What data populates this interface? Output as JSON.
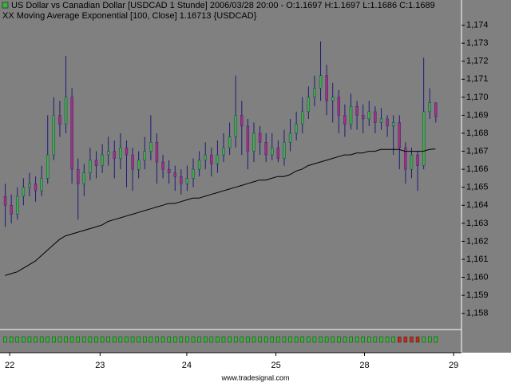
{
  "chart_data": {
    "type": "candlestick",
    "title": "US Dollar vs Canadian Dollar [USDCAD  1 Stunde] 2006/03/28 20:00 - O:1.1697 H:1.1697 L:1.1686 C:1.1689",
    "subtitle": "XX Moving Average Exponential [100, Close] 1.16713 {USDCAD}",
    "footer": "www.tradesignal.com",
    "colors": {
      "up": "#3fb03f",
      "down": "#a3307a",
      "wick": "#1c1c78",
      "ema": "#000000",
      "trend_up": "#3fb03f",
      "trend_down": "#d02020"
    },
    "open": [
      1.1645,
      1.164,
      1.1635,
      1.1645,
      1.165,
      1.1652,
      1.1648,
      1.1655,
      1.1668,
      1.169,
      1.1685,
      1.17,
      1.166,
      1.1652,
      1.1658,
      1.1665,
      1.1662,
      1.1668,
      1.167,
      1.1666,
      1.1672,
      1.1668,
      1.166,
      1.1665,
      1.167,
      1.1675,
      1.1664,
      1.166,
      1.1658,
      1.1656,
      1.1652,
      1.1655,
      1.166,
      1.1665,
      1.1668,
      1.1663,
      1.1668,
      1.1672,
      1.1678,
      1.169,
      1.1684,
      1.167,
      1.168,
      1.1675,
      1.1668,
      1.1672,
      1.1666,
      1.1675,
      1.168,
      1.1685,
      1.1692,
      1.17,
      1.1705,
      1.1712,
      1.1698,
      1.17,
      1.169,
      1.1685,
      1.1695,
      1.169,
      1.1688,
      1.1692,
      1.1686,
      1.1688,
      1.1684,
      1.1686,
      1.1672,
      1.166,
      1.1668,
      1.1662,
      1.1692,
      1.1697
    ],
    "high": [
      1.1652,
      1.1646,
      1.165,
      1.1655,
      1.1658,
      1.1656,
      1.1662,
      1.169,
      1.17,
      1.1698,
      1.1723,
      1.1705,
      1.1666,
      1.1663,
      1.1672,
      1.167,
      1.1674,
      1.1678,
      1.1676,
      1.168,
      1.1676,
      1.1672,
      1.167,
      1.1678,
      1.169,
      1.168,
      1.1668,
      1.1665,
      1.1662,
      1.166,
      1.1662,
      1.1666,
      1.167,
      1.1675,
      1.1672,
      1.1676,
      1.168,
      1.1686,
      1.1712,
      1.1698,
      1.1688,
      1.1686,
      1.1684,
      1.168,
      1.168,
      1.1676,
      1.1682,
      1.1688,
      1.1692,
      1.17,
      1.1706,
      1.1712,
      1.1731,
      1.1718,
      1.1708,
      1.1704,
      1.1696,
      1.1702,
      1.1698,
      1.1696,
      1.1698,
      1.1695,
      1.1694,
      1.169,
      1.169,
      1.169,
      1.1675,
      1.1672,
      1.167,
      1.1722,
      1.1705,
      1.1697
    ],
    "low": [
      1.1628,
      1.163,
      1.1632,
      1.164,
      1.1645,
      1.1642,
      1.1645,
      1.1652,
      1.1665,
      1.1678,
      1.168,
      1.1652,
      1.1632,
      1.1645,
      1.1654,
      1.1655,
      1.1658,
      1.1662,
      1.1655,
      1.166,
      1.165,
      1.1648,
      1.1655,
      1.166,
      1.1665,
      1.1652,
      1.1655,
      1.1652,
      1.1648,
      1.1646,
      1.1648,
      1.165,
      1.1656,
      1.166,
      1.1656,
      1.1658,
      1.1664,
      1.1668,
      1.1672,
      1.1668,
      1.166,
      1.1664,
      1.1668,
      1.1664,
      1.1665,
      1.1664,
      1.1662,
      1.167,
      1.1676,
      1.168,
      1.1688,
      1.1695,
      1.1698,
      1.169,
      1.1686,
      1.168,
      1.1678,
      1.1682,
      1.1682,
      1.168,
      1.1684,
      1.168,
      1.1682,
      1.1678,
      1.1668,
      1.166,
      1.1652,
      1.1655,
      1.1648,
      1.166,
      1.1688,
      1.1686
    ],
    "close": [
      1.164,
      1.1635,
      1.1645,
      1.165,
      1.1652,
      1.1648,
      1.1655,
      1.1668,
      1.169,
      1.1685,
      1.17,
      1.166,
      1.1652,
      1.1658,
      1.1665,
      1.1662,
      1.1668,
      1.167,
      1.1666,
      1.1672,
      1.1668,
      1.166,
      1.1665,
      1.167,
      1.1675,
      1.1664,
      1.166,
      1.1658,
      1.1656,
      1.1652,
      1.1655,
      1.166,
      1.1665,
      1.1668,
      1.1663,
      1.1668,
      1.1672,
      1.1678,
      1.169,
      1.1684,
      1.167,
      1.168,
      1.1675,
      1.1668,
      1.1672,
      1.1666,
      1.1675,
      1.168,
      1.1685,
      1.1692,
      1.17,
      1.1705,
      1.1712,
      1.1698,
      1.17,
      1.169,
      1.1685,
      1.1695,
      1.169,
      1.1688,
      1.1692,
      1.1686,
      1.1688,
      1.1684,
      1.1686,
      1.1672,
      1.166,
      1.1668,
      1.1662,
      1.1692,
      1.1697,
      1.1689
    ],
    "ema": [
      1.1601,
      1.1602,
      1.1603,
      1.1605,
      1.1607,
      1.1609,
      1.1612,
      1.1615,
      1.1618,
      1.1621,
      1.1623,
      1.1624,
      1.1625,
      1.1626,
      1.1627,
      1.1628,
      1.1629,
      1.1631,
      1.1632,
      1.1633,
      1.1634,
      1.1635,
      1.1636,
      1.1637,
      1.1638,
      1.1639,
      1.164,
      1.1641,
      1.1641,
      1.1642,
      1.1643,
      1.1644,
      1.1644,
      1.1645,
      1.1646,
      1.1647,
      1.1648,
      1.1649,
      1.165,
      1.1651,
      1.1652,
      1.1653,
      1.1654,
      1.1654,
      1.1655,
      1.1656,
      1.1656,
      1.1657,
      1.1659,
      1.166,
      1.1662,
      1.1663,
      1.1664,
      1.1665,
      1.1666,
      1.1667,
      1.1668,
      1.1668,
      1.1669,
      1.1669,
      1.167,
      1.167,
      1.1671,
      1.1671,
      1.1671,
      1.1671,
      1.167,
      1.167,
      1.167,
      1.167,
      1.1671,
      1.16713
    ],
    "trend": [
      1,
      1,
      1,
      1,
      1,
      1,
      1,
      1,
      1,
      1,
      1,
      1,
      1,
      1,
      1,
      1,
      1,
      1,
      1,
      1,
      1,
      1,
      1,
      1,
      1,
      1,
      1,
      1,
      1,
      1,
      1,
      1,
      1,
      1,
      1,
      1,
      1,
      1,
      1,
      1,
      1,
      1,
      1,
      1,
      1,
      1,
      1,
      1,
      1,
      1,
      1,
      1,
      1,
      1,
      1,
      1,
      1,
      1,
      1,
      1,
      1,
      1,
      1,
      1,
      1,
      -1,
      -1,
      -1,
      -1,
      1,
      1,
      1
    ],
    "xlim": [
      -0.8,
      75.3
    ],
    "xticks": [
      {
        "value": 0.8,
        "label": "22"
      },
      {
        "value": 15.7,
        "label": "23"
      },
      {
        "value": 30,
        "label": "24"
      },
      {
        "value": 44.7,
        "label": "25"
      },
      {
        "value": 59.3,
        "label": "28"
      },
      {
        "value": 74,
        "label": "29"
      }
    ],
    "ylim": [
      1.1571,
      1.1754
    ],
    "yticks": [
      {
        "value": 1.158,
        "label": "1,158"
      },
      {
        "value": 1.159,
        "label": "1,159"
      },
      {
        "value": 1.16,
        "label": "1,160"
      },
      {
        "value": 1.161,
        "label": "1,161"
      },
      {
        "value": 1.162,
        "label": "1,162"
      },
      {
        "value": 1.163,
        "label": "1,163"
      },
      {
        "value": 1.164,
        "label": "1,164"
      },
      {
        "value": 1.165,
        "label": "1,165"
      },
      {
        "value": 1.166,
        "label": "1,166"
      },
      {
        "value": 1.167,
        "label": "1,167"
      },
      {
        "value": 1.168,
        "label": "1,168"
      },
      {
        "value": 1.169,
        "label": "1,169"
      },
      {
        "value": 1.17,
        "label": "1,170"
      },
      {
        "value": 1.171,
        "label": "1,171"
      },
      {
        "value": 1.172,
        "label": "1,172"
      },
      {
        "value": 1.173,
        "label": "1,173"
      },
      {
        "value": 1.174,
        "label": "1,174"
      }
    ]
  }
}
